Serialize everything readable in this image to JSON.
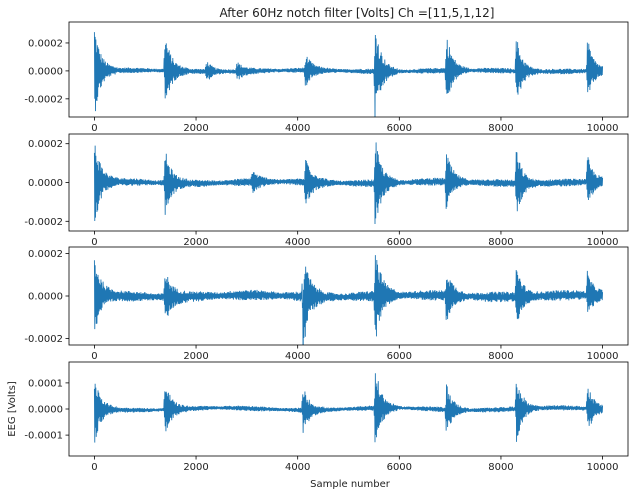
{
  "figure": {
    "title": "After 60Hz notch filter [Volts] Ch =[11,5,1,12]",
    "xlabel": "Sample number",
    "ylabel": "EEG [Volts]",
    "line_color": "#1f77b4"
  },
  "chart_data": [
    {
      "type": "line",
      "panel": 1,
      "x_range": [
        0,
        10000
      ],
      "xlim": [
        -500,
        10500
      ],
      "ylim": [
        -0.00033,
        0.00035
      ],
      "x_ticks": [
        0,
        2000,
        4000,
        6000,
        8000,
        10000
      ],
      "y_ticks": [
        {
          "value": 0.0002,
          "label": "0.0002"
        },
        {
          "value": 0.0,
          "label": "0.0000"
        },
        {
          "value": -0.0002,
          "label": "-0.0002"
        }
      ],
      "series": [
        {
          "noise_amplitude": 2e-05,
          "artifacts": [
            {
              "x": 0,
              "amp": 0.00033
            },
            {
              "x": 1380,
              "amp": 0.00029
            },
            {
              "x": 2200,
              "amp": 7e-05
            },
            {
              "x": 2800,
              "amp": 6e-05
            },
            {
              "x": 4150,
              "amp": 0.00011
            },
            {
              "x": 5520,
              "amp": 0.00036
            },
            {
              "x": 6920,
              "amp": 0.00027
            },
            {
              "x": 8300,
              "amp": 0.00025
            },
            {
              "x": 9700,
              "amp": 0.00023
            }
          ]
        }
      ]
    },
    {
      "type": "line",
      "panel": 2,
      "x_range": [
        0,
        10000
      ],
      "xlim": [
        -500,
        10500
      ],
      "ylim": [
        -0.00025,
        0.00025
      ],
      "x_ticks": [
        0,
        2000,
        4000,
        6000,
        8000,
        10000
      ],
      "y_ticks": [
        {
          "value": 0.0002,
          "label": "0.0002"
        },
        {
          "value": 0.0,
          "label": "0.0000"
        },
        {
          "value": -0.0002,
          "label": "-0.0002"
        }
      ],
      "series": [
        {
          "noise_amplitude": 2e-05,
          "artifacts": [
            {
              "x": 0,
              "amp": 0.00023
            },
            {
              "x": 1380,
              "amp": 0.00018
            },
            {
              "x": 3100,
              "amp": 5e-05
            },
            {
              "x": 4150,
              "amp": 0.00014
            },
            {
              "x": 5520,
              "amp": 0.00023
            },
            {
              "x": 6920,
              "amp": 0.00015
            },
            {
              "x": 8300,
              "amp": 0.00017
            },
            {
              "x": 9700,
              "amp": 0.00013
            }
          ]
        }
      ]
    },
    {
      "type": "line",
      "panel": 3,
      "x_range": [
        0,
        10000
      ],
      "xlim": [
        -500,
        10500
      ],
      "ylim": [
        -0.00023,
        0.00023
      ],
      "x_ticks": [
        0,
        2000,
        4000,
        6000,
        8000,
        10000
      ],
      "y_ticks": [
        {
          "value": 0.0002,
          "label": "0.0002"
        },
        {
          "value": 0.0,
          "label": "0.0000"
        },
        {
          "value": -0.0002,
          "label": "-0.0002"
        }
      ],
      "series": [
        {
          "noise_amplitude": 2.5e-05,
          "artifacts": [
            {
              "x": 0,
              "amp": 0.00019
            },
            {
              "x": 1380,
              "amp": 0.00013
            },
            {
              "x": 4100,
              "amp": -0.00022
            },
            {
              "x": 5520,
              "amp": 0.00022
            },
            {
              "x": 6920,
              "amp": 0.00012
            },
            {
              "x": 8300,
              "amp": 0.00014
            },
            {
              "x": 9700,
              "amp": 0.0001
            }
          ]
        }
      ]
    },
    {
      "type": "line",
      "panel": 4,
      "x_range": [
        0,
        10000
      ],
      "xlim": [
        -500,
        10500
      ],
      "ylim": [
        -0.00018,
        0.00018
      ],
      "x_ticks": [
        0,
        2000,
        4000,
        6000,
        8000,
        10000
      ],
      "y_ticks": [
        {
          "value": 0.0001,
          "label": "0.0001"
        },
        {
          "value": 0.0,
          "label": "0.0000"
        },
        {
          "value": -0.0001,
          "label": "-0.0001"
        }
      ],
      "series": [
        {
          "noise_amplitude": 1e-05,
          "artifacts": [
            {
              "x": 0,
              "amp": 0.00014
            },
            {
              "x": 1380,
              "amp": 0.00012
            },
            {
              "x": 4100,
              "amp": 9e-05
            },
            {
              "x": 5520,
              "amp": 0.00016
            },
            {
              "x": 6920,
              "amp": 0.0001
            },
            {
              "x": 8300,
              "amp": 0.00013
            },
            {
              "x": 9700,
              "amp": 0.0001
            }
          ]
        }
      ]
    }
  ]
}
